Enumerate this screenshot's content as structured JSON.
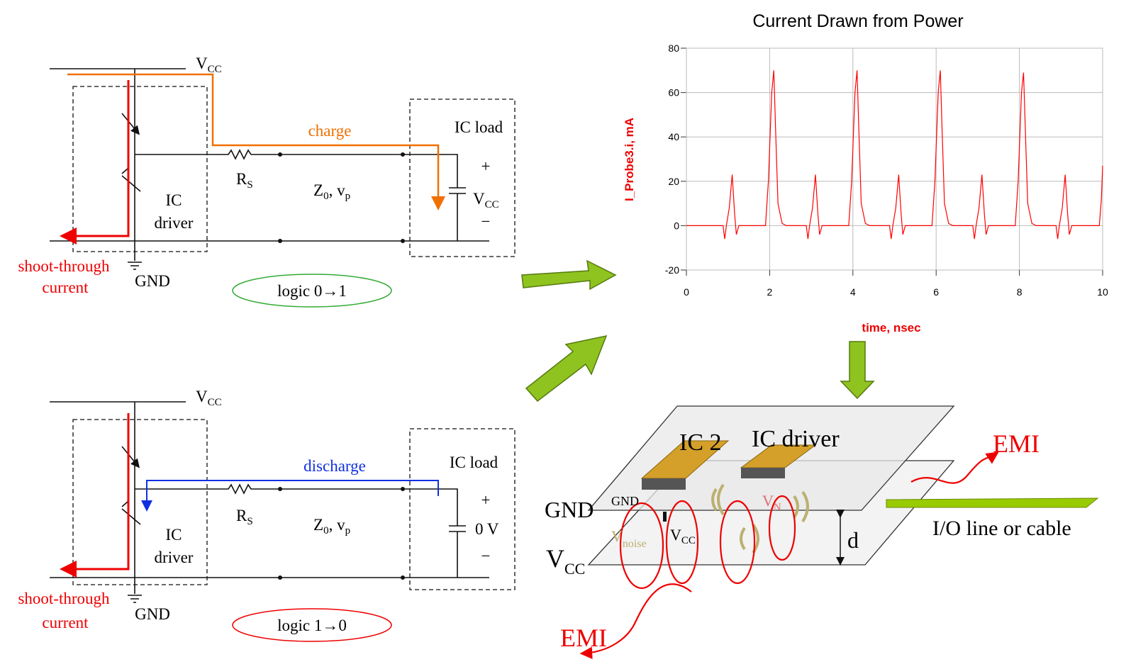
{
  "top_circuit": {
    "vcc_rail": {
      "base": "V",
      "sub": "CC"
    },
    "flow": "charge",
    "ic_load": "IC load",
    "plus": "+",
    "cap_label": {
      "base": "V",
      "sub": "CC"
    },
    "minus": "−",
    "rs": {
      "base": "R",
      "sub": "S"
    },
    "line": {
      "z": "Z",
      "z_sub": "0",
      "v": ", v",
      "v_sub": "p"
    },
    "ic": "IC",
    "driver": "driver",
    "shoot_through": "shoot-through",
    "current": "current",
    "gnd": "GND",
    "logic": "logic 0→1"
  },
  "bottom_circuit": {
    "vcc_rail": {
      "base": "V",
      "sub": "CC"
    },
    "flow": "discharge",
    "ic_load": "IC load",
    "plus": "+",
    "cap_label": "0 V",
    "minus": "−",
    "rs": {
      "base": "R",
      "sub": "S"
    },
    "line": {
      "z": "Z",
      "z_sub": "0",
      "v": ", v",
      "v_sub": "p"
    },
    "ic": "IC",
    "driver": "driver",
    "shoot_through": "shoot-through",
    "current": "current",
    "gnd": "GND",
    "logic": "logic 1→0"
  },
  "chart_data": {
    "type": "line",
    "title": "Current Drawn from Power",
    "x_label": "time, nsec",
    "y_label": "I_Probe3.i, mA",
    "color": "#ff0000",
    "grid": true,
    "xlim": [
      0,
      10
    ],
    "xticks": [
      0,
      2,
      4,
      6,
      8,
      10
    ],
    "ylim": [
      -20,
      80
    ],
    "yticks": [
      -20,
      0,
      20,
      40,
      60,
      80
    ],
    "x": [
      0,
      0.88,
      0.92,
      0.96,
      1.03,
      1.1,
      1.16,
      1.2,
      1.26,
      1.9,
      1.97,
      2.05,
      2.1,
      2.14,
      2.2,
      2.3,
      2.4,
      2.88,
      2.92,
      2.96,
      3.03,
      3.1,
      3.16,
      3.2,
      3.26,
      3.9,
      3.97,
      4.05,
      4.1,
      4.14,
      4.2,
      4.3,
      4.4,
      4.88,
      4.92,
      4.96,
      5.03,
      5.1,
      5.16,
      5.2,
      5.26,
      5.9,
      5.97,
      6.05,
      6.1,
      6.14,
      6.2,
      6.3,
      6.4,
      6.88,
      6.92,
      6.96,
      7.03,
      7.1,
      7.16,
      7.2,
      7.26,
      7.9,
      7.97,
      8.05,
      8.1,
      8.14,
      8.2,
      8.3,
      8.4,
      8.88,
      8.92,
      8.96,
      9.03,
      9.1,
      9.16,
      9.2,
      9.26,
      9.92,
      9.97,
      10
    ],
    "values": [
      0,
      0,
      -6,
      0,
      8,
      23,
      5,
      -4,
      0,
      0,
      20,
      60,
      70,
      45,
      10,
      1,
      0,
      0,
      -6,
      0,
      8,
      23,
      5,
      -4,
      0,
      0,
      20,
      60,
      70,
      45,
      10,
      1,
      0,
      0,
      -6,
      0,
      8,
      23,
      5,
      -4,
      0,
      0,
      20,
      60,
      70,
      45,
      10,
      1,
      0,
      0,
      -6,
      0,
      8,
      23,
      5,
      -4,
      0,
      0,
      20,
      60,
      69,
      45,
      10,
      1,
      0,
      0,
      -6,
      0,
      8,
      23,
      5,
      -4,
      0,
      0,
      12,
      27
    ]
  },
  "pcb": {
    "ic2": "IC 2",
    "ic_driver": "IC driver",
    "emi_top": "EMI",
    "gnd_plane": "GND",
    "gnd_pin": "GND",
    "v_noise": {
      "base": "V",
      "sub": "noise"
    },
    "v_n": {
      "base": "V",
      "sub": "N"
    },
    "vcc_pin": {
      "base": "V",
      "sub": "CC"
    },
    "d": "d",
    "io_line": "I/O line or cable",
    "vcc_plane": {
      "base": "V",
      "sub": "CC"
    },
    "emi_bottom": "EMI"
  }
}
